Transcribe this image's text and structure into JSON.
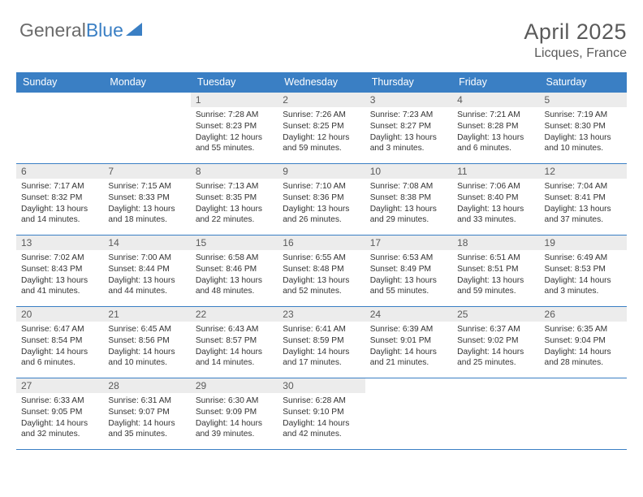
{
  "logo": {
    "text_gray": "General",
    "text_blue": "Blue"
  },
  "header": {
    "title": "April 2025",
    "location": "Licques, France"
  },
  "weekdays": [
    "Sunday",
    "Monday",
    "Tuesday",
    "Wednesday",
    "Thursday",
    "Friday",
    "Saturday"
  ],
  "calendar": {
    "type": "table",
    "columns": 7,
    "rows": 5,
    "colors": {
      "header_bg": "#3a7fc4",
      "header_text": "#ffffff",
      "daynum_bg": "#ececec",
      "border": "#3a7fc4",
      "text": "#333333"
    },
    "font_sizes": {
      "header": 12.5,
      "daynum": 12,
      "body": 10.2
    },
    "cells": [
      [
        {
          "empty": true
        },
        {
          "empty": true
        },
        {
          "day": "1",
          "sunrise": "7:28 AM",
          "sunset": "8:23 PM",
          "daylight": "12 hours and 55 minutes."
        },
        {
          "day": "2",
          "sunrise": "7:26 AM",
          "sunset": "8:25 PM",
          "daylight": "12 hours and 59 minutes."
        },
        {
          "day": "3",
          "sunrise": "7:23 AM",
          "sunset": "8:27 PM",
          "daylight": "13 hours and 3 minutes."
        },
        {
          "day": "4",
          "sunrise": "7:21 AM",
          "sunset": "8:28 PM",
          "daylight": "13 hours and 6 minutes."
        },
        {
          "day": "5",
          "sunrise": "7:19 AM",
          "sunset": "8:30 PM",
          "daylight": "13 hours and 10 minutes."
        }
      ],
      [
        {
          "day": "6",
          "sunrise": "7:17 AM",
          "sunset": "8:32 PM",
          "daylight": "13 hours and 14 minutes."
        },
        {
          "day": "7",
          "sunrise": "7:15 AM",
          "sunset": "8:33 PM",
          "daylight": "13 hours and 18 minutes."
        },
        {
          "day": "8",
          "sunrise": "7:13 AM",
          "sunset": "8:35 PM",
          "daylight": "13 hours and 22 minutes."
        },
        {
          "day": "9",
          "sunrise": "7:10 AM",
          "sunset": "8:36 PM",
          "daylight": "13 hours and 26 minutes."
        },
        {
          "day": "10",
          "sunrise": "7:08 AM",
          "sunset": "8:38 PM",
          "daylight": "13 hours and 29 minutes."
        },
        {
          "day": "11",
          "sunrise": "7:06 AM",
          "sunset": "8:40 PM",
          "daylight": "13 hours and 33 minutes."
        },
        {
          "day": "12",
          "sunrise": "7:04 AM",
          "sunset": "8:41 PM",
          "daylight": "13 hours and 37 minutes."
        }
      ],
      [
        {
          "day": "13",
          "sunrise": "7:02 AM",
          "sunset": "8:43 PM",
          "daylight": "13 hours and 41 minutes."
        },
        {
          "day": "14",
          "sunrise": "7:00 AM",
          "sunset": "8:44 PM",
          "daylight": "13 hours and 44 minutes."
        },
        {
          "day": "15",
          "sunrise": "6:58 AM",
          "sunset": "8:46 PM",
          "daylight": "13 hours and 48 minutes."
        },
        {
          "day": "16",
          "sunrise": "6:55 AM",
          "sunset": "8:48 PM",
          "daylight": "13 hours and 52 minutes."
        },
        {
          "day": "17",
          "sunrise": "6:53 AM",
          "sunset": "8:49 PM",
          "daylight": "13 hours and 55 minutes."
        },
        {
          "day": "18",
          "sunrise": "6:51 AM",
          "sunset": "8:51 PM",
          "daylight": "13 hours and 59 minutes."
        },
        {
          "day": "19",
          "sunrise": "6:49 AM",
          "sunset": "8:53 PM",
          "daylight": "14 hours and 3 minutes."
        }
      ],
      [
        {
          "day": "20",
          "sunrise": "6:47 AM",
          "sunset": "8:54 PM",
          "daylight": "14 hours and 6 minutes."
        },
        {
          "day": "21",
          "sunrise": "6:45 AM",
          "sunset": "8:56 PM",
          "daylight": "14 hours and 10 minutes."
        },
        {
          "day": "22",
          "sunrise": "6:43 AM",
          "sunset": "8:57 PM",
          "daylight": "14 hours and 14 minutes."
        },
        {
          "day": "23",
          "sunrise": "6:41 AM",
          "sunset": "8:59 PM",
          "daylight": "14 hours and 17 minutes."
        },
        {
          "day": "24",
          "sunrise": "6:39 AM",
          "sunset": "9:01 PM",
          "daylight": "14 hours and 21 minutes."
        },
        {
          "day": "25",
          "sunrise": "6:37 AM",
          "sunset": "9:02 PM",
          "daylight": "14 hours and 25 minutes."
        },
        {
          "day": "26",
          "sunrise": "6:35 AM",
          "sunset": "9:04 PM",
          "daylight": "14 hours and 28 minutes."
        }
      ],
      [
        {
          "day": "27",
          "sunrise": "6:33 AM",
          "sunset": "9:05 PM",
          "daylight": "14 hours and 32 minutes."
        },
        {
          "day": "28",
          "sunrise": "6:31 AM",
          "sunset": "9:07 PM",
          "daylight": "14 hours and 35 minutes."
        },
        {
          "day": "29",
          "sunrise": "6:30 AM",
          "sunset": "9:09 PM",
          "daylight": "14 hours and 39 minutes."
        },
        {
          "day": "30",
          "sunrise": "6:28 AM",
          "sunset": "9:10 PM",
          "daylight": "14 hours and 42 minutes."
        },
        {
          "empty": true
        },
        {
          "empty": true
        },
        {
          "empty": true
        }
      ]
    ]
  },
  "labels": {
    "sunrise": "Sunrise: ",
    "sunset": "Sunset: ",
    "daylight": "Daylight: "
  }
}
